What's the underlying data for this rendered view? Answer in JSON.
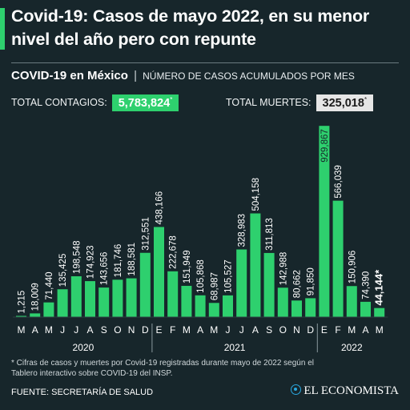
{
  "header": {
    "title": "Covid-19: Casos de mayo 2022, en su menor nivel del año pero con repunte",
    "subtitle_strong": "COVID-19 en México",
    "subtitle_sep": "|",
    "subtitle_desc": "NÚMERO DE CASOS ACUMULADOS POR MES"
  },
  "totals": {
    "contagios_label": "TOTAL CONTAGIOS:",
    "contagios_value": "5,783,824",
    "muertes_label": "TOTAL MUERTES:",
    "muertes_value": "325,018",
    "asterisk": "*"
  },
  "colors": {
    "background": "#17262b",
    "bar": "#2ed06e",
    "accent": "#2ed06e",
    "brand_icon": "#2aa8e0"
  },
  "chart_data": {
    "type": "bar",
    "title": "",
    "xlabel": "",
    "ylabel": "",
    "ylim": [
      0,
      950000
    ],
    "categories": [
      "M",
      "A",
      "M",
      "J",
      "J",
      "A",
      "S",
      "O",
      "N",
      "D",
      "E",
      "F",
      "M",
      "A",
      "M",
      "J",
      "J",
      "A",
      "S",
      "O",
      "N",
      "D",
      "E",
      "F",
      "M",
      "A",
      "M"
    ],
    "values": [
      1215,
      18009,
      71440,
      135425,
      198548,
      174923,
      143656,
      181746,
      188581,
      312551,
      438166,
      222678,
      151949,
      105868,
      68987,
      105527,
      328983,
      504158,
      311813,
      142988,
      80662,
      91850,
      929867,
      566039,
      150906,
      74390,
      44144
    ],
    "labels": [
      "1,215",
      "18,009",
      "71,440",
      "135,425",
      "198,548",
      "174,923",
      "143,656",
      "181,746",
      "188,581",
      "312,551",
      "438,166",
      "222,678",
      "151,949",
      "105,868",
      "68,987",
      "105,527",
      "328,983",
      "504,158",
      "311,813",
      "142,988",
      "80,662",
      "91,850",
      "929,867",
      "566,039",
      "150,906",
      "74,390",
      "44,144*"
    ],
    "years": [
      {
        "label": "2020",
        "start": 0,
        "end": 9
      },
      {
        "label": "2021",
        "start": 10,
        "end": 21
      },
      {
        "label": "2022",
        "start": 22,
        "end": 26
      }
    ]
  },
  "footnote": "* Cifras de casos y muertes por Covid-19 registradas durante mayo de 2022 según el Tablero interactivo sobre COVID-19 del INSP.",
  "source": "FUENTE: SECRETARÍA DE SALUD",
  "brand": "EL ECONOMISTA"
}
